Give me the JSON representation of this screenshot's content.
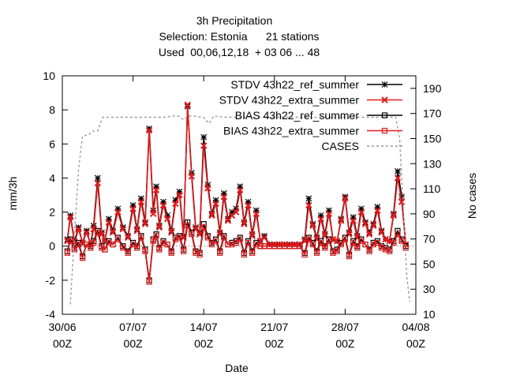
{
  "chart_data": {
    "type": "line",
    "title_lines": [
      "3h Precipitation",
      "Selection: Estonia      21 stations",
      "Used  00,06,12,18  + 03 06 ... 48"
    ],
    "xlabel": "Date",
    "ylabel": "mm/3h",
    "y2label": "No cases",
    "xlim": [
      0,
      35
    ],
    "ylim": [
      -4,
      10
    ],
    "y2lim": [
      10,
      200
    ],
    "x_ticks": [
      {
        "x": 0,
        "line1": "30/06",
        "line2": "00Z"
      },
      {
        "x": 7,
        "line1": "07/07",
        "line2": "00Z"
      },
      {
        "x": 14,
        "line1": "14/07",
        "line2": "00Z"
      },
      {
        "x": 21,
        "line1": "21/07",
        "line2": "00Z"
      },
      {
        "x": 28,
        "line1": "28/07",
        "line2": "00Z"
      },
      {
        "x": 35,
        "line1": "04/08",
        "line2": "00Z"
      }
    ],
    "y_ticks": [
      -4,
      -2,
      0,
      2,
      4,
      6,
      8,
      10
    ],
    "y2_ticks": [
      10,
      30,
      50,
      70,
      90,
      110,
      130,
      150,
      170,
      190
    ],
    "legend_position": "top-right",
    "legend": [
      {
        "label": "STDV 43h22_ref_summer",
        "color": "#000000",
        "marker": "star"
      },
      {
        "label": "STDV 43h22_extra_summer",
        "color": "#e41a1c",
        "marker": "x"
      },
      {
        "label": "BIAS 43h22_ref_summer",
        "color": "#000000",
        "marker": "square"
      },
      {
        "label": "BIAS 43h22_extra_summer",
        "color": "#e41a1c",
        "marker": "square"
      },
      {
        "label": "CASES",
        "color": "#999999",
        "marker": "dashed"
      }
    ],
    "series": [
      {
        "name": "STDV 43h22_ref_summer",
        "color": "#000000",
        "axis": "y",
        "marker": "star",
        "x": [
          0.5,
          0.8,
          1.2,
          1.6,
          2.0,
          2.4,
          2.8,
          3.1,
          3.5,
          3.9,
          4.2,
          4.6,
          5.0,
          5.5,
          6.0,
          6.5,
          7.0,
          7.4,
          7.8,
          8.2,
          8.6,
          9.0,
          9.3,
          9.6,
          10.0,
          10.4,
          10.8,
          11.2,
          11.6,
          12.0,
          12.4,
          12.8,
          13.2,
          13.6,
          14.0,
          14.4,
          14.8,
          15.2,
          15.6,
          16.0,
          16.4,
          16.8,
          17.2,
          17.6,
          18.0,
          18.4,
          18.8,
          19.2,
          19.6,
          20.0,
          20.5,
          21.0,
          21.5,
          22.0,
          22.5,
          23.0,
          23.5,
          24.0,
          24.4,
          24.8,
          25.2,
          25.6,
          26.0,
          26.4,
          26.8,
          27.2,
          27.6,
          28.0,
          28.4,
          28.8,
          29.2,
          29.6,
          30.0,
          30.4,
          30.8,
          31.2,
          31.6,
          32.0,
          32.4,
          32.8,
          33.2,
          33.6,
          34.0
        ],
        "y": [
          0.4,
          1.8,
          0.3,
          1.1,
          0.2,
          0.9,
          0.1,
          1.2,
          4.0,
          0.8,
          0.3,
          1.6,
          0.9,
          2.2,
          1.1,
          0.6,
          2.4,
          1.0,
          2.8,
          1.4,
          6.9,
          2.1,
          3.5,
          1.2,
          2.6,
          1.8,
          0.9,
          2.7,
          3.2,
          0.6,
          8.2,
          4.3,
          1.1,
          0.8,
          6.4,
          3.6,
          1.9,
          2.7,
          0.8,
          3.1,
          1.6,
          2.0,
          2.2,
          3.5,
          1.4,
          2.6,
          0.7,
          2.1,
          0.3,
          0.6,
          0.1,
          0.1,
          0.1,
          0.1,
          0.1,
          0.1,
          0.1,
          0.4,
          2.8,
          1.3,
          0.5,
          1.8,
          0.7,
          2.1,
          0.4,
          0.3,
          1.6,
          2.9,
          0.8,
          1.7,
          0.6,
          2.2,
          1.4,
          0.8,
          1.3,
          2.3,
          0.9,
          0.4,
          0.3,
          1.9,
          4.4,
          2.9,
          0.1
        ]
      },
      {
        "name": "STDV 43h22_extra_summer",
        "color": "#e41a1c",
        "axis": "y",
        "marker": "x",
        "x": [
          0.5,
          0.8,
          1.2,
          1.6,
          2.0,
          2.4,
          2.8,
          3.1,
          3.5,
          3.9,
          4.2,
          4.6,
          5.0,
          5.5,
          6.0,
          6.5,
          7.0,
          7.4,
          7.8,
          8.2,
          8.6,
          9.0,
          9.3,
          9.6,
          10.0,
          10.4,
          10.8,
          11.2,
          11.6,
          12.0,
          12.4,
          12.8,
          13.2,
          13.6,
          14.0,
          14.4,
          14.8,
          15.2,
          15.6,
          16.0,
          16.4,
          16.8,
          17.2,
          17.6,
          18.0,
          18.4,
          18.8,
          19.2,
          19.6,
          20.0,
          20.5,
          21.0,
          21.5,
          22.0,
          22.5,
          23.0,
          23.5,
          24.0,
          24.4,
          24.8,
          25.2,
          25.6,
          26.0,
          26.4,
          26.8,
          27.2,
          27.6,
          28.0,
          28.4,
          28.8,
          29.2,
          29.6,
          30.0,
          30.4,
          30.8,
          31.2,
          31.6,
          32.0,
          32.4,
          32.8,
          33.2,
          33.6,
          34.0
        ],
        "y": [
          0.3,
          1.7,
          0.2,
          1.0,
          0.2,
          0.8,
          0.1,
          1.0,
          3.7,
          0.7,
          0.3,
          1.4,
          0.8,
          2.0,
          1.0,
          0.5,
          2.2,
          0.9,
          2.6,
          1.3,
          6.8,
          1.9,
          3.3,
          1.1,
          2.4,
          1.6,
          0.8,
          2.5,
          3.0,
          0.5,
          8.3,
          4.1,
          1.0,
          0.7,
          5.9,
          3.4,
          1.8,
          2.5,
          0.7,
          2.9,
          1.5,
          1.8,
          2.0,
          3.3,
          1.3,
          2.4,
          0.6,
          1.9,
          0.3,
          0.5,
          0.1,
          0.1,
          0.1,
          0.1,
          0.1,
          0.1,
          0.1,
          0.3,
          2.4,
          1.2,
          0.4,
          1.6,
          0.6,
          1.9,
          0.4,
          0.3,
          1.5,
          2.8,
          0.7,
          1.5,
          0.5,
          2.0,
          1.3,
          0.7,
          1.2,
          2.1,
          0.8,
          0.4,
          0.3,
          1.8,
          4.0,
          2.6,
          0.1
        ]
      },
      {
        "name": "BIAS 43h22_ref_summer",
        "color": "#000000",
        "axis": "y",
        "marker": "square",
        "x": [
          0.5,
          0.8,
          1.2,
          1.6,
          2.0,
          2.4,
          2.8,
          3.1,
          3.5,
          3.9,
          4.2,
          4.6,
          5.0,
          5.5,
          6.0,
          6.5,
          7.0,
          7.4,
          7.8,
          8.2,
          8.6,
          9.0,
          9.3,
          9.6,
          10.0,
          10.4,
          10.8,
          11.2,
          11.6,
          12.0,
          12.4,
          12.8,
          13.2,
          13.6,
          14.0,
          14.4,
          14.8,
          15.2,
          15.6,
          16.0,
          16.4,
          16.8,
          17.2,
          17.6,
          18.0,
          18.4,
          18.8,
          19.2,
          19.6,
          20.0,
          20.5,
          21.0,
          21.5,
          22.0,
          22.5,
          23.0,
          23.5,
          24.0,
          24.4,
          24.8,
          25.2,
          25.6,
          26.0,
          26.4,
          26.8,
          27.2,
          27.6,
          28.0,
          28.4,
          28.8,
          29.2,
          29.6,
          30.0,
          30.4,
          30.8,
          31.2,
          31.6,
          32.0,
          32.4,
          32.8,
          33.2,
          33.6,
          34.0
        ],
        "y": [
          -0.3,
          0.4,
          -0.1,
          0.2,
          -0.6,
          0.1,
          0.0,
          0.3,
          0.9,
          0.0,
          -0.2,
          0.3,
          0.1,
          0.5,
          0.0,
          -0.3,
          0.2,
          0.0,
          0.6,
          -0.2,
          -2.0,
          0.4,
          0.7,
          -0.1,
          0.3,
          0.1,
          -0.3,
          0.5,
          0.6,
          -0.2,
          1.4,
          0.8,
          -0.3,
          -0.4,
          1.3,
          0.6,
          0.2,
          0.4,
          -0.3,
          0.6,
          0.1,
          0.2,
          0.3,
          0.5,
          -0.4,
          0.3,
          -0.3,
          0.2,
          0.0,
          0.0,
          0.0,
          0.0,
          0.0,
          0.0,
          0.0,
          0.0,
          0.0,
          -0.4,
          0.5,
          0.2,
          -0.3,
          0.3,
          0.0,
          0.4,
          -0.3,
          -0.2,
          0.2,
          0.5,
          -0.5,
          0.3,
          0.0,
          0.4,
          0.1,
          -0.2,
          0.2,
          0.3,
          0.0,
          -0.1,
          -0.2,
          0.3,
          0.9,
          0.4,
          0.0
        ]
      },
      {
        "name": "BIAS 43h22_extra_summer",
        "color": "#e41a1c",
        "axis": "y",
        "marker": "square",
        "x": [
          0.5,
          0.8,
          1.2,
          1.6,
          2.0,
          2.4,
          2.8,
          3.1,
          3.5,
          3.9,
          4.2,
          4.6,
          5.0,
          5.5,
          6.0,
          6.5,
          7.0,
          7.4,
          7.8,
          8.2,
          8.6,
          9.0,
          9.3,
          9.6,
          10.0,
          10.4,
          10.8,
          11.2,
          11.6,
          12.0,
          12.4,
          12.8,
          13.2,
          13.6,
          14.0,
          14.4,
          14.8,
          15.2,
          15.6,
          16.0,
          16.4,
          16.8,
          17.2,
          17.6,
          18.0,
          18.4,
          18.8,
          19.2,
          19.6,
          20.0,
          20.5,
          21.0,
          21.5,
          22.0,
          22.5,
          23.0,
          23.5,
          24.0,
          24.4,
          24.8,
          25.2,
          25.6,
          26.0,
          26.4,
          26.8,
          27.2,
          27.6,
          28.0,
          28.4,
          28.8,
          29.2,
          29.6,
          30.0,
          30.4,
          30.8,
          31.2,
          31.6,
          32.0,
          32.4,
          32.8,
          33.2,
          33.6,
          34.0
        ],
        "y": [
          -0.4,
          0.3,
          -0.2,
          0.1,
          -0.7,
          0.1,
          -0.1,
          0.2,
          0.8,
          -0.1,
          -0.2,
          0.2,
          0.1,
          0.4,
          -0.1,
          -0.4,
          0.1,
          -0.1,
          0.5,
          -0.3,
          -2.1,
          0.3,
          0.6,
          -0.2,
          0.2,
          0.1,
          -0.4,
          0.4,
          0.5,
          -0.3,
          1.2,
          0.7,
          -0.4,
          -0.5,
          1.1,
          0.5,
          0.1,
          0.3,
          -0.4,
          0.5,
          0.1,
          0.1,
          0.2,
          0.4,
          -0.5,
          0.2,
          -0.4,
          0.1,
          0.0,
          0.0,
          0.0,
          0.0,
          0.0,
          0.0,
          0.0,
          0.0,
          0.0,
          -0.5,
          0.4,
          0.1,
          -0.4,
          0.2,
          -0.1,
          0.3,
          -0.4,
          -0.3,
          0.1,
          0.4,
          -0.6,
          0.2,
          -0.1,
          0.3,
          0.1,
          -0.3,
          0.1,
          0.2,
          -0.1,
          -0.2,
          -0.3,
          0.2,
          0.7,
          0.3,
          -0.1
        ]
      },
      {
        "name": "CASES",
        "color": "#999999",
        "axis": "y2",
        "marker": "dashed",
        "x": [
          0.8,
          1.2,
          1.6,
          2.0,
          2.6,
          3.0,
          3.5,
          4.0,
          5.0,
          6.0,
          7.0,
          8.0,
          9.0,
          10.0,
          11.0,
          11.5,
          12.0,
          12.5,
          13.0,
          14.0,
          14.5,
          15.0,
          16.0,
          18.0,
          20.0,
          22.0,
          24.0,
          26.0,
          28.0,
          30.0,
          32.0,
          33.0,
          33.4,
          33.8,
          34.1,
          34.4
        ],
        "y": [
          18,
          75,
          125,
          152,
          153,
          156,
          156,
          167,
          167,
          167,
          167,
          167,
          167,
          167,
          168,
          168,
          165,
          168,
          168,
          167,
          162,
          168,
          167,
          167,
          167,
          167,
          167,
          167,
          167,
          167,
          167,
          167,
          150,
          88,
          40,
          20
        ]
      }
    ]
  }
}
